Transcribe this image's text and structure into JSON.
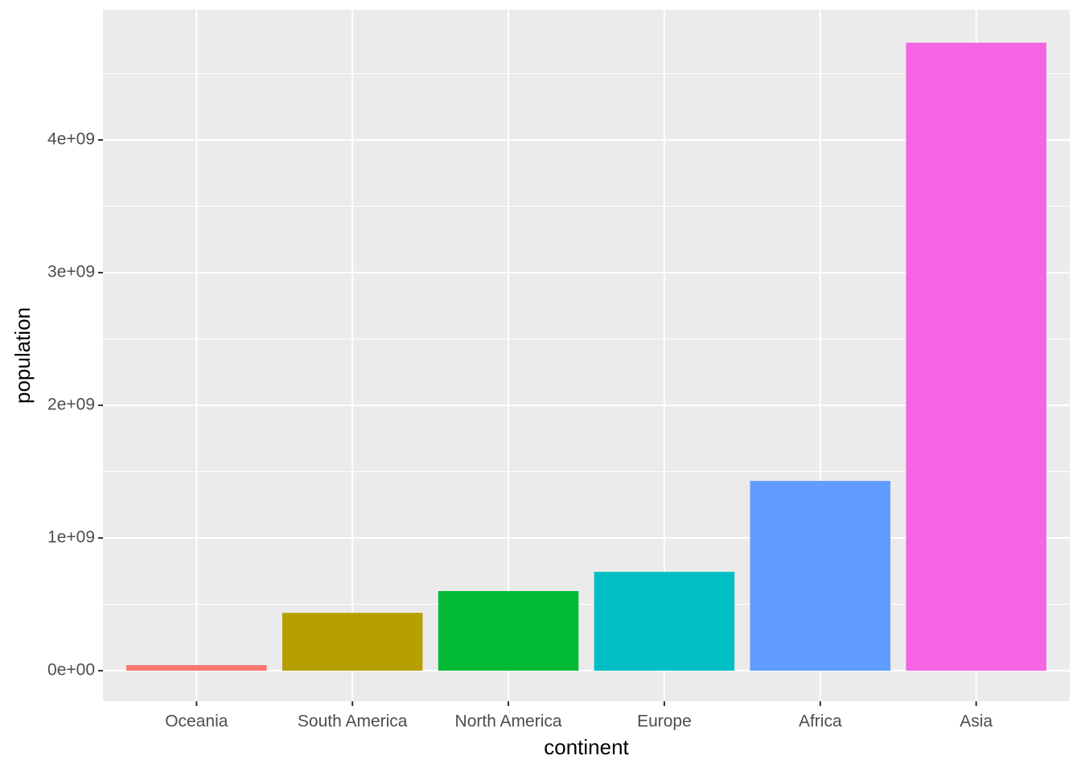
{
  "chart_data": {
    "type": "bar",
    "x_label": "continent",
    "y_label": "population",
    "categories": [
      "Oceania",
      "South America",
      "North America",
      "Europe",
      "Africa",
      "Asia"
    ],
    "values": [
      42000000,
      436000000,
      600000000,
      745000000,
      1430000000,
      4733000000
    ],
    "colors": [
      "#F8766D",
      "#B79F00",
      "#00BA38",
      "#00BFC4",
      "#619CFF",
      "#F564E3"
    ],
    "ylim": [
      -230000000,
      4982000000
    ],
    "yticks": [
      {
        "value": 0,
        "label": "0e+00"
      },
      {
        "value": 1000000000,
        "label": "1e+09"
      },
      {
        "value": 2000000000,
        "label": "2e+09"
      },
      {
        "value": 3000000000,
        "label": "3e+09"
      },
      {
        "value": 4000000000,
        "label": "4e+09"
      }
    ],
    "y_minor_gridlines": [
      500000000,
      1500000000,
      2500000000,
      3500000000,
      4500000000
    ],
    "grid": true
  }
}
